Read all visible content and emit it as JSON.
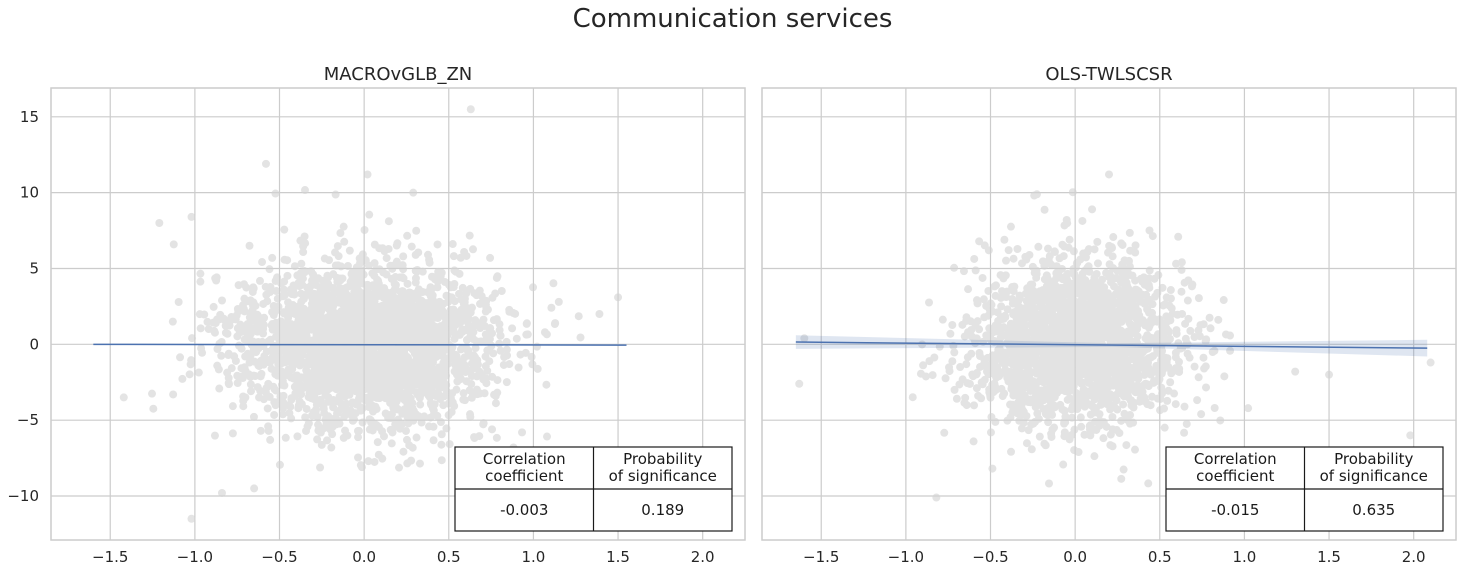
{
  "figure": {
    "title": "Communication services"
  },
  "chart_data": [
    {
      "type": "scatter",
      "title": "MACROvGLB_ZN",
      "xlabel": "",
      "ylabel": "",
      "xlim": [
        -1.85,
        2.25
      ],
      "ylim": [
        -12.9,
        16.9
      ],
      "xticks": [
        -1.5,
        -1.0,
        -0.5,
        0.0,
        0.5,
        1.0,
        1.5,
        2.0
      ],
      "xtick_labels": [
        "−1.5",
        "−1.0",
        "−0.5",
        "0.0",
        "0.5",
        "1.0",
        "1.5",
        "2.0"
      ],
      "yticks": [
        15,
        10,
        5,
        0,
        -5,
        -10
      ],
      "ytick_labels": [
        "15",
        "10",
        "5",
        "0",
        "−5",
        "−10"
      ],
      "grid": true,
      "point_color": "#d3d3d3",
      "regression": {
        "x0": -1.6,
        "y0": 0.0,
        "x1": 1.55,
        "y1": -0.05,
        "color": "#4c72b0",
        "ci_band": [
          0.0,
          0.0
        ]
      },
      "scatter_spec": {
        "n": 2600,
        "x_sd": 0.38,
        "y_sd": 2.6,
        "x_range": [
          -1.6,
          1.55
        ],
        "seed": 11
      },
      "outliers": [
        {
          "x": 0.63,
          "y": 15.5
        },
        {
          "x": -0.58,
          "y": 11.9
        },
        {
          "x": 0.02,
          "y": 11.2
        },
        {
          "x": 0.29,
          "y": 10.0
        },
        {
          "x": -1.02,
          "y": 8.4
        },
        {
          "x": -1.21,
          "y": 8.0
        },
        {
          "x": -1.02,
          "y": -11.5
        },
        {
          "x": -0.84,
          "y": -9.8
        },
        {
          "x": -0.65,
          "y": -9.5
        },
        {
          "x": -1.42,
          "y": -3.5
        },
        {
          "x": 1.5,
          "y": 3.1
        },
        {
          "x": 1.39,
          "y": 2.0
        }
      ],
      "stats_table": {
        "headers": [
          "Correlation\ncoefficient",
          "Probability\nof significance"
        ],
        "values": [
          "-0.003",
          "0.189"
        ],
        "position": "lower-right"
      }
    },
    {
      "type": "scatter",
      "title": "OLS-TWLSCSR",
      "xlabel": "",
      "ylabel": "",
      "xlim": [
        -1.85,
        2.25
      ],
      "ylim": [
        -12.9,
        16.9
      ],
      "xticks": [
        -1.5,
        -1.0,
        -0.5,
        0.0,
        0.5,
        1.0,
        1.5,
        2.0
      ],
      "xtick_labels": [
        "−1.5",
        "−1.0",
        "−0.5",
        "0.0",
        "0.5",
        "1.0",
        "1.5",
        "2.0"
      ],
      "yticks": [
        15,
        10,
        5,
        0,
        -5,
        -10
      ],
      "ytick_labels": [
        "15",
        "10",
        "5",
        "0",
        "−5",
        "−10"
      ],
      "grid": true,
      "point_color": "#d3d3d3",
      "regression": {
        "x0": -1.65,
        "y0": 0.15,
        "x1": 2.08,
        "y1": -0.25,
        "color": "#4c72b0",
        "ci_band": [
          0.45,
          0.55
        ]
      },
      "scatter_spec": {
        "n": 2200,
        "x_sd": 0.3,
        "y_sd": 2.6,
        "x_range": [
          -1.5,
          1.4
        ],
        "seed": 23
      },
      "outliers": [
        {
          "x": 0.2,
          "y": 11.2
        },
        {
          "x": 0.1,
          "y": 8.9
        },
        {
          "x": -0.05,
          "y": 8.2
        },
        {
          "x": -1.63,
          "y": -2.6
        },
        {
          "x": -1.6,
          "y": 0.4
        },
        {
          "x": -0.82,
          "y": -10.1
        },
        {
          "x": 2.1,
          "y": -1.2
        },
        {
          "x": 1.98,
          "y": -6.0
        },
        {
          "x": 1.3,
          "y": -1.8
        },
        {
          "x": 1.5,
          "y": -2.0
        },
        {
          "x": 0.55,
          "y": 0.9
        },
        {
          "x": -0.6,
          "y": -6.4
        }
      ],
      "stats_table": {
        "headers": [
          "Correlation\ncoefficient",
          "Probability\nof significance"
        ],
        "values": [
          "-0.015",
          "0.635"
        ],
        "position": "lower-right"
      }
    }
  ]
}
